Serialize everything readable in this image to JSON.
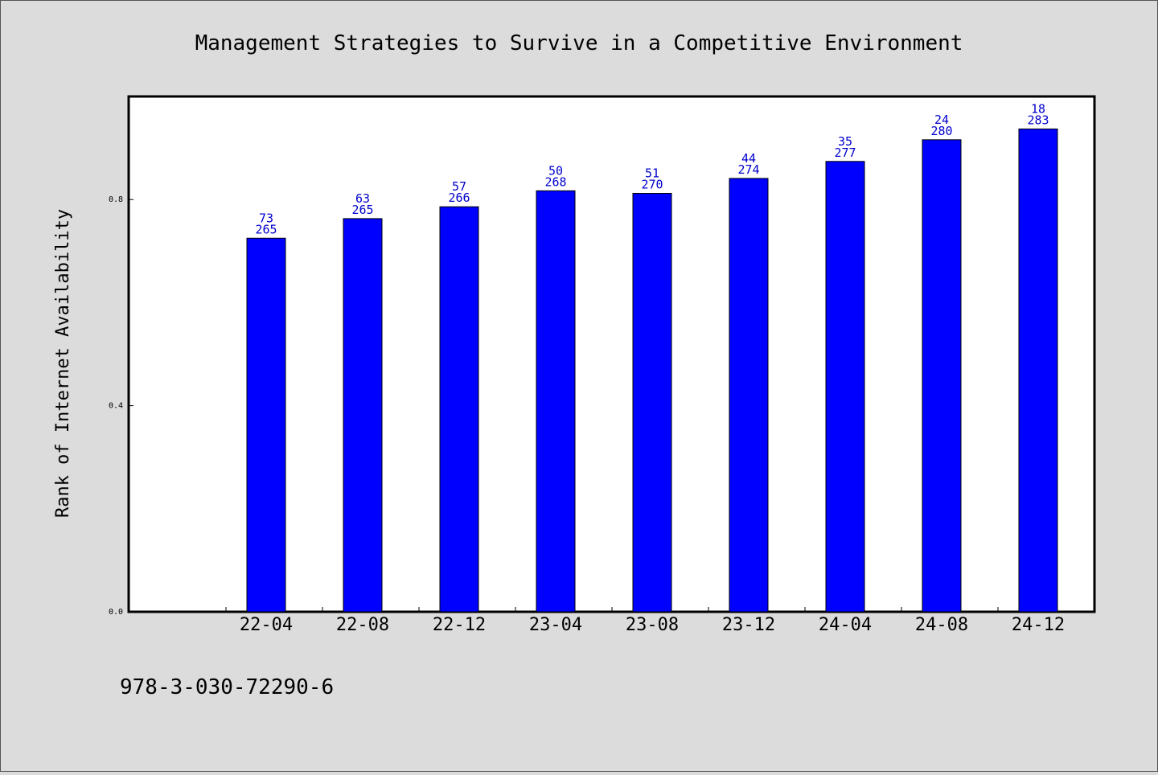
{
  "chart_data": {
    "type": "bar",
    "title": "Management Strategies to Survive in a Competitive Environment",
    "xlabel": "",
    "ylabel": "Rank of Internet Availability",
    "categories": [
      "22-04",
      "22-08",
      "22-12",
      "23-04",
      "23-08",
      "23-12",
      "24-04",
      "24-08",
      "24-12"
    ],
    "values": [
      0.725,
      0.763,
      0.786,
      0.817,
      0.812,
      0.841,
      0.874,
      0.916,
      0.937
    ],
    "label_top": [
      "73",
      "63",
      "57",
      "50",
      "51",
      "44",
      "35",
      "24",
      "18"
    ],
    "label_bottom": [
      "265",
      "265",
      "266",
      "268",
      "270",
      "274",
      "277",
      "280",
      "283"
    ],
    "yticks": [
      "0.0",
      "0.4",
      "0.8"
    ],
    "ytick_values": [
      0.0,
      0.4,
      0.8
    ],
    "ylim": [
      0,
      1.0
    ],
    "grid": false,
    "bar_color": "#0000ff",
    "label_color": "#0000cc",
    "background_color": "#dcdcdc",
    "plot_background": "#ffffff"
  },
  "footer": {
    "text": "978-3-030-72290-6"
  }
}
